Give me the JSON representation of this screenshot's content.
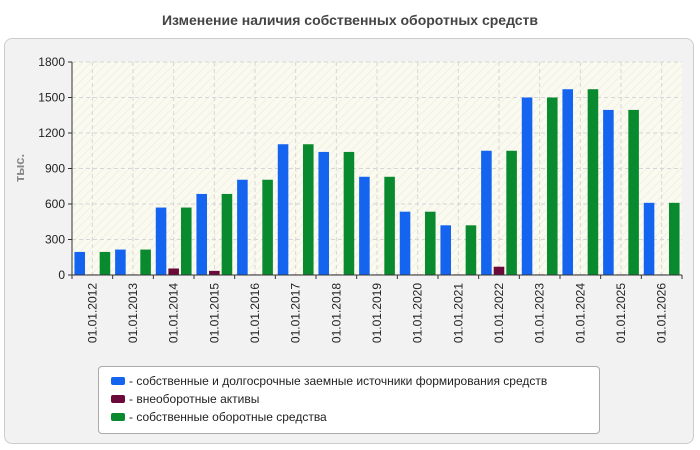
{
  "title": "Изменение наличия собственных оборотных средств",
  "chart_data": {
    "type": "bar",
    "title": "Изменение наличия собственных оборотных средств",
    "ylabel": "тыс.",
    "xlabel": "",
    "ylim": [
      0,
      1800
    ],
    "yticks": [
      0,
      300,
      600,
      900,
      1200,
      1500,
      1800
    ],
    "grid": true,
    "legend_position": "bottom",
    "categories": [
      "01.01.2012",
      "01.01.2013",
      "01.01.2014",
      "01.01.2015",
      "01.01.2016",
      "01.01.2017",
      "01.01.2018",
      "01.01.2019",
      "01.01.2020",
      "01.01.2021",
      "01.01.2022",
      "01.01.2023",
      "01.01.2024",
      "01.01.2025",
      "01.01.2026"
    ],
    "series": [
      {
        "name": "- собственные и долгосрочные заемные источники формирования средств",
        "color": "#1464f0",
        "values": [
          195,
          215,
          570,
          685,
          805,
          1105,
          1040,
          830,
          535,
          420,
          1050,
          1500,
          1570,
          1395,
          610
        ]
      },
      {
        "name": "- внеоборотные активы",
        "color": "#6b0a3a",
        "values": [
          5,
          5,
          55,
          35,
          5,
          5,
          5,
          5,
          5,
          5,
          70,
          5,
          5,
          5,
          5
        ]
      },
      {
        "name": "- собственные оборотные средства",
        "color": "#0a8a2e",
        "values": [
          195,
          215,
          570,
          685,
          805,
          1105,
          1040,
          830,
          535,
          420,
          1050,
          1500,
          1570,
          1395,
          610
        ]
      }
    ]
  }
}
